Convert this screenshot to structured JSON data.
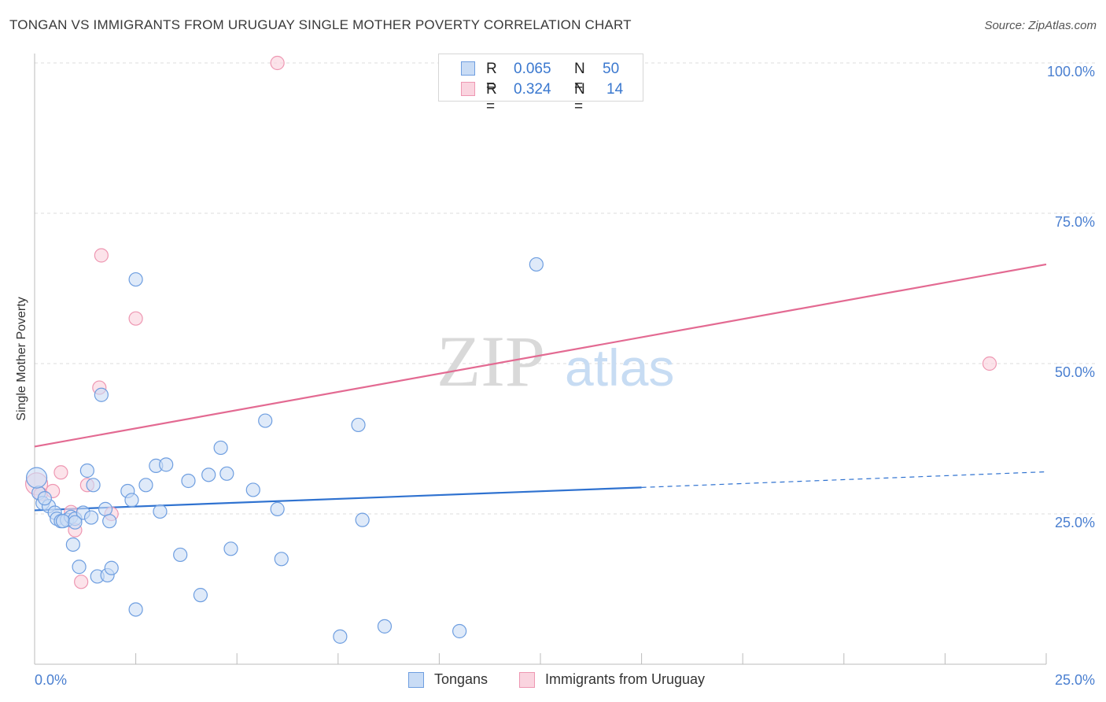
{
  "title": "TONGAN VS IMMIGRANTS FROM URUGUAY SINGLE MOTHER POVERTY CORRELATION CHART",
  "source": "Source: ZipAtlas.com",
  "watermark": {
    "zip": "ZIP",
    "atlas": "atlas"
  },
  "legend_top": [
    {
      "r_label": "R =",
      "r_value": "0.065",
      "n_label": "N =",
      "n_value": "50"
    },
    {
      "r_label": "R =",
      "r_value": "0.324",
      "n_label": "N =",
      "n_value": "14"
    }
  ],
  "legend_bottom": [
    "Tongans",
    "Immigrants from Uruguay"
  ],
  "colors": {
    "blue_fill": "#c9dcf5",
    "blue_edge": "#6e9ee0",
    "blue_line": "#2f72d0",
    "pink_fill": "#fad4df",
    "pink_edge": "#ee97b2",
    "pink_line": "#e36a92",
    "grid": "#dddddd",
    "tick_text": "#4a7fd0"
  },
  "chart_data": {
    "type": "scatter",
    "title": "TONGAN VS IMMIGRANTS FROM URUGUAY SINGLE MOTHER POVERTY CORRELATION CHART",
    "xlabel": "",
    "ylabel": "Single Mother Poverty",
    "xlim": [
      0,
      25
    ],
    "ylim": [
      0,
      100
    ],
    "x_tick_labels": [
      "0.0%",
      "25.0%"
    ],
    "y_ticks": [
      25,
      50,
      75,
      100
    ],
    "y_tick_labels": [
      "25.0%",
      "50.0%",
      "75.0%",
      "100.0%"
    ],
    "series": [
      {
        "name": "Tongans",
        "R": 0.065,
        "N": 50,
        "points": [
          [
            0.1,
            28.5
          ],
          [
            0.2,
            26.8
          ],
          [
            0.35,
            26.3
          ],
          [
            0.5,
            25.2
          ],
          [
            0.55,
            24.2
          ],
          [
            0.65,
            23.8
          ],
          [
            0.8,
            24.0
          ],
          [
            0.9,
            24.5
          ],
          [
            0.95,
            19.9
          ],
          [
            1.0,
            24.2
          ],
          [
            1.1,
            16.2
          ],
          [
            1.2,
            25.2
          ],
          [
            1.3,
            32.2
          ],
          [
            1.4,
            24.4
          ],
          [
            1.45,
            29.8
          ],
          [
            1.55,
            14.6
          ],
          [
            1.75,
            25.8
          ],
          [
            1.8,
            14.8
          ],
          [
            1.85,
            23.8
          ],
          [
            1.9,
            16.0
          ],
          [
            1.65,
            44.8
          ],
          [
            2.3,
            28.8
          ],
          [
            2.4,
            27.3
          ],
          [
            2.5,
            9.1
          ],
          [
            2.5,
            64.0
          ],
          [
            2.75,
            29.8
          ],
          [
            3.0,
            33.0
          ],
          [
            3.1,
            25.4
          ],
          [
            3.25,
            33.2
          ],
          [
            3.6,
            18.2
          ],
          [
            3.8,
            30.5
          ],
          [
            4.1,
            11.5
          ],
          [
            4.3,
            31.5
          ],
          [
            4.6,
            36.0
          ],
          [
            4.75,
            31.7
          ],
          [
            4.85,
            19.2
          ],
          [
            5.4,
            29.0
          ],
          [
            5.7,
            40.5
          ],
          [
            6.0,
            25.8
          ],
          [
            6.1,
            17.5
          ],
          [
            7.55,
            4.6
          ],
          [
            8.0,
            39.8
          ],
          [
            8.1,
            24.0
          ],
          [
            8.65,
            6.3
          ],
          [
            10.5,
            5.5
          ],
          [
            12.4,
            66.5
          ],
          [
            0.05,
            31.0
          ],
          [
            0.25,
            27.6
          ],
          [
            0.7,
            23.8
          ],
          [
            1.0,
            23.6
          ]
        ]
      },
      {
        "name": "Immigrants from Uruguay",
        "R": 0.324,
        "N": 14,
        "points": [
          [
            0.05,
            30.0
          ],
          [
            0.15,
            28.3
          ],
          [
            0.45,
            28.8
          ],
          [
            0.65,
            31.9
          ],
          [
            0.9,
            25.3
          ],
          [
            1.0,
            22.3
          ],
          [
            1.15,
            13.7
          ],
          [
            1.3,
            29.8
          ],
          [
            1.6,
            46.0
          ],
          [
            1.65,
            68.0
          ],
          [
            1.9,
            25.0
          ],
          [
            2.5,
            57.5
          ],
          [
            6.0,
            100.0
          ],
          [
            23.6,
            50.0
          ]
        ]
      }
    ],
    "trend_lines": [
      {
        "series": "Tongans",
        "x0": 0,
        "y0": 25.6,
        "x_solid_end": 15,
        "y_solid_end": 29.4,
        "x1": 25,
        "y1": 32.0,
        "dashed_after": 15
      },
      {
        "series": "Immigrants from Uruguay",
        "x0": 0,
        "y0": 36.2,
        "x1": 25,
        "y1": 66.5
      }
    ]
  }
}
